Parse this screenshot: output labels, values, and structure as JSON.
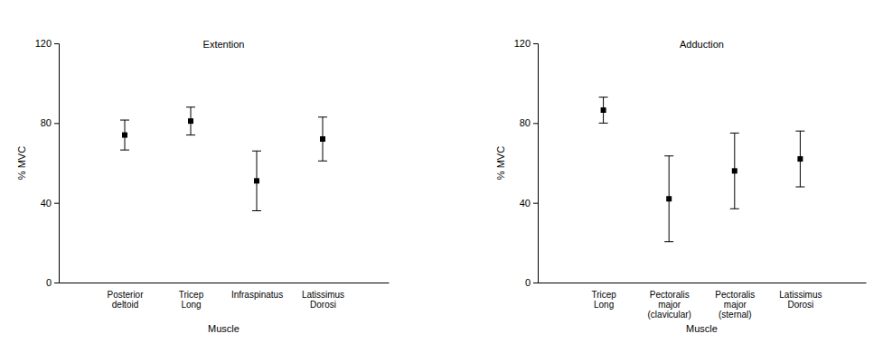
{
  "chart_data": [
    {
      "type": "errorbar",
      "title": "Extention",
      "x_label": "Muscle",
      "y_label": "% MVC",
      "categories": [
        "Posterior\ndeltoid",
        "Tricep\nLong",
        "Infraspinatus",
        "Latissimus\nDorosi"
      ],
      "values": [
        74,
        81,
        51,
        72
      ],
      "errors": [
        7.5,
        7,
        15,
        11
      ],
      "ylim": [
        0,
        120
      ],
      "yticks": [
        0,
        40,
        80,
        120
      ],
      "color": "#000000",
      "marker": "square"
    },
    {
      "type": "errorbar",
      "title": "Adduction",
      "x_label": "Muscle",
      "y_label": "% MVC",
      "categories": [
        "Tricep\nLong",
        "Pectoralis\nmajor\n(clavicular)",
        "Pectoralis\nmajor\n(sternal)",
        "Latissimus\nDorosi"
      ],
      "values": [
        86.5,
        42,
        56,
        62
      ],
      "errors": [
        6.5,
        21.5,
        19,
        14
      ],
      "ylim": [
        0,
        120
      ],
      "yticks": [
        0,
        40,
        80,
        120
      ],
      "color": "#000000",
      "marker": "square"
    }
  ]
}
